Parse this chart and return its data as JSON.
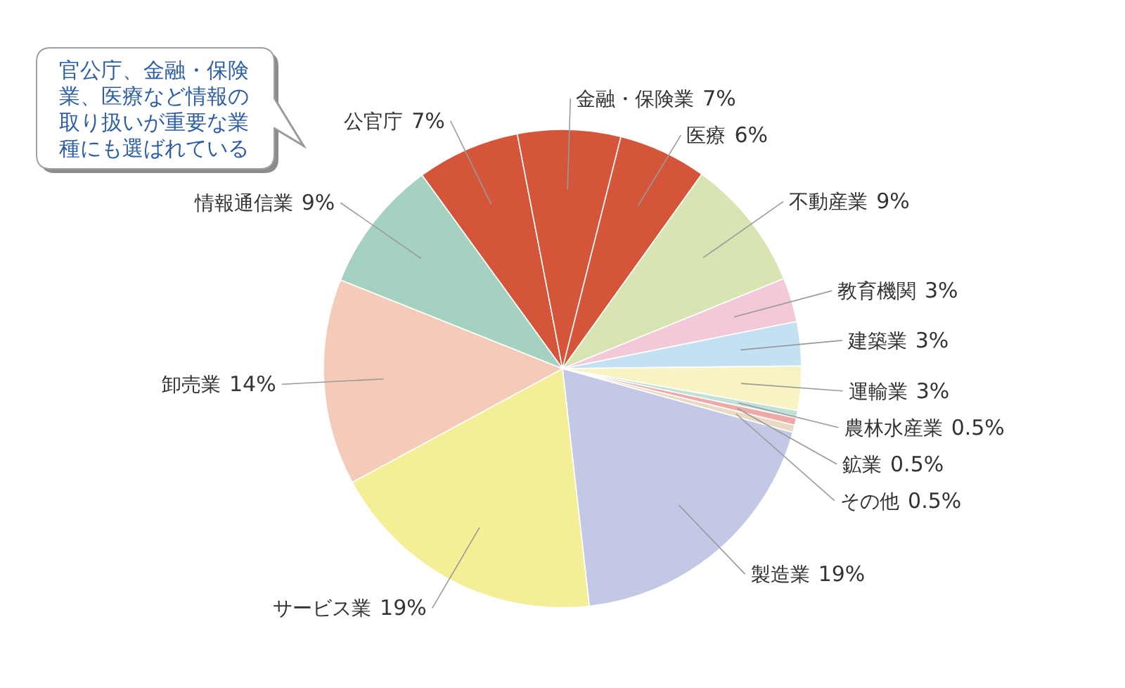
{
  "chart_data": {
    "type": "pie",
    "categories": [
      "公官庁",
      "金融・保険業",
      "医療",
      "不動産業",
      "教育機関",
      "建築業",
      "運輸業",
      "農林水産業",
      "鉱業",
      "その他",
      "製造業",
      "サービス業",
      "卸売業",
      "情報通信業"
    ],
    "values": [
      7,
      7,
      6,
      9,
      3,
      3,
      3,
      0.5,
      0.5,
      0.5,
      19,
      19,
      14,
      9
    ],
    "value_labels": [
      "7%",
      "7%",
      "6%",
      "9%",
      "3%",
      "3%",
      "3%",
      "0.5%",
      "0.5%",
      "0.5%",
      "19%",
      "19%",
      "14%",
      "9%"
    ],
    "colors": [
      "#d4553a",
      "#d4553a",
      "#d4553a",
      "#d8e4b2",
      "#f3c9da",
      "#c3e1f1",
      "#f8f3c2",
      "#c0e2d6",
      "#f0a9a9",
      "#e9dac2",
      "#c3c9e4",
      "#f4ef96",
      "#f3cbb8",
      "#a5d1c0"
    ],
    "annotations": [
      "官公庁、金融・保険業、医療など情報の取り扱いが重要な業種にも選ばれている"
    ]
  }
}
